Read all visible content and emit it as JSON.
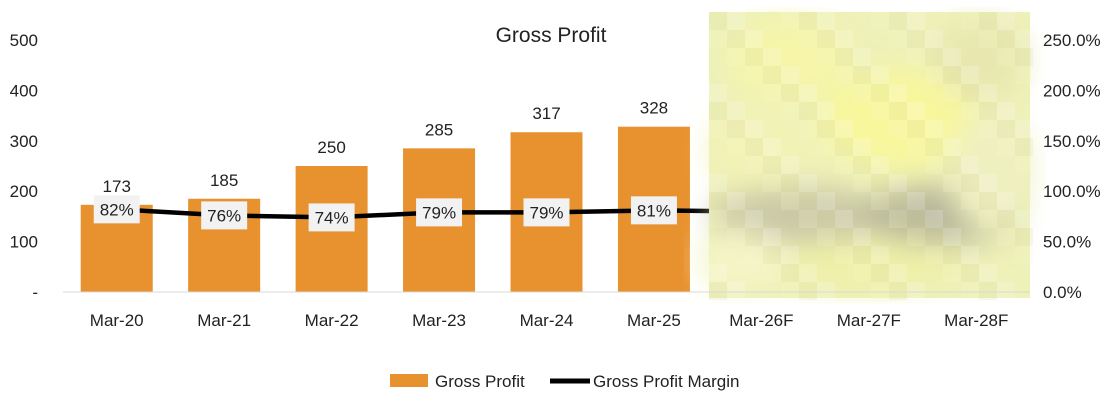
{
  "chart_data": {
    "type": "bar",
    "title": "Gross Profit",
    "categories": [
      "Mar-20",
      "Mar-21",
      "Mar-22",
      "Mar-23",
      "Mar-24",
      "Mar-25",
      "Mar-26F",
      "Mar-27F",
      "Mar-28F"
    ],
    "series": [
      {
        "name": "Gross Profit",
        "type": "bar",
        "axis": "left",
        "color": "#E8912F",
        "values": [
          173,
          185,
          250,
          285,
          317,
          328,
          null,
          null,
          null
        ],
        "labels": [
          "173",
          "185",
          "250",
          "285",
          "317",
          "328",
          "",
          "",
          ""
        ]
      },
      {
        "name": "Gross Profit Margin",
        "type": "line",
        "axis": "right",
        "color": "#000000",
        "values": [
          82,
          76,
          74,
          79,
          79,
          81,
          null,
          null,
          null
        ],
        "labels": [
          "82%",
          "76%",
          "74%",
          "79%",
          "79%",
          "81%",
          "",
          "",
          ""
        ]
      }
    ],
    "y_left": {
      "min": 0,
      "max": 500,
      "ticks": [
        0,
        100,
        200,
        300,
        400,
        500
      ],
      "tick_labels": [
        "-",
        "100",
        "200",
        "300",
        "400",
        "500"
      ]
    },
    "y_right": {
      "min": 0,
      "max": 250,
      "ticks": [
        0,
        50,
        100,
        150,
        200,
        250
      ],
      "tick_labels": [
        "0.0%",
        "50.0%",
        "100.0%",
        "150.0%",
        "200.0%",
        "250.0%"
      ]
    },
    "grid": false,
    "legend": "bottom",
    "obscured_region": "Mar-26F to Mar-28F (pixelated)"
  }
}
